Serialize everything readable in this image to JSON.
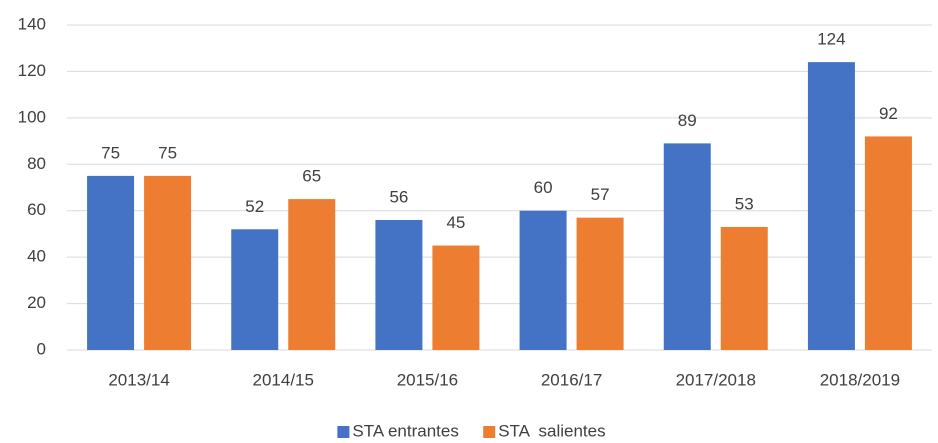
{
  "chart_data": {
    "type": "bar",
    "categories": [
      "2013/14",
      "2014/15",
      "2015/16",
      "2016/17",
      "2017/2018",
      "2018/2019"
    ],
    "series": [
      {
        "name": "STA entrantes",
        "color": "#4472c4",
        "values": [
          75,
          52,
          56,
          60,
          89,
          124
        ]
      },
      {
        "name": "STA  salientes",
        "color": "#ed7d31",
        "values": [
          75,
          65,
          45,
          57,
          53,
          92
        ]
      }
    ],
    "ylim": [
      0,
      140
    ],
    "yticks": [
      0,
      20,
      40,
      60,
      80,
      100,
      120,
      140
    ],
    "grid": true,
    "legend": "bottom"
  }
}
